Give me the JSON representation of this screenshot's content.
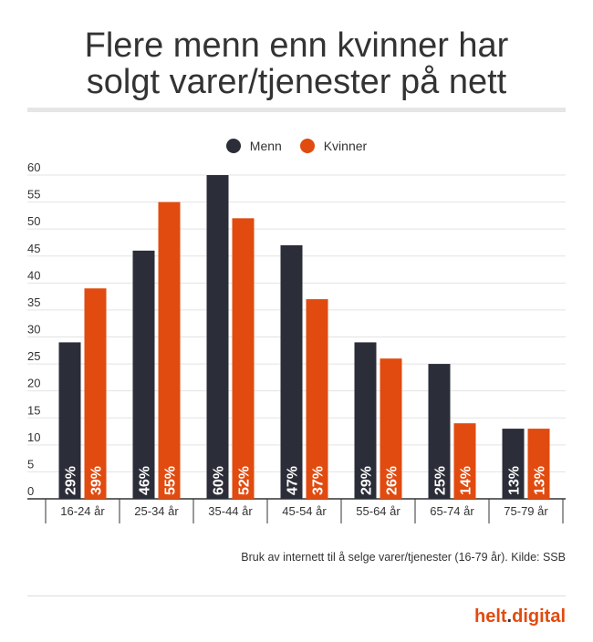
{
  "title_line1": "Flere menn enn kvinner har",
  "title_line2": "solgt varer/tjenester på nett",
  "colors": {
    "menn": "#2b2e38",
    "kvinner": "#e14b0f",
    "grid": "#e3e3e3",
    "axis": "#333333"
  },
  "chart_data": {
    "type": "bar",
    "title": "",
    "categories": [
      "16-24 år",
      "25-34 år",
      "35-44 år",
      "45-54 år",
      "55-64 år",
      "65-74 år",
      "75-79 år"
    ],
    "series": [
      {
        "name": "Menn",
        "values": [
          29,
          46,
          60,
          47,
          29,
          25,
          13
        ],
        "labels": [
          "29%",
          "46%",
          "60%",
          "47%",
          "29%",
          "25%",
          "13%"
        ]
      },
      {
        "name": "Kvinner",
        "values": [
          39,
          55,
          52,
          37,
          26,
          14,
          13
        ],
        "labels": [
          "39%",
          "55%",
          "52%",
          "37%",
          "26%",
          "14%",
          "13%"
        ]
      }
    ],
    "ylim": [
      0,
      60
    ],
    "yticks": [
      "0",
      "5",
      "10",
      "15",
      "20",
      "25",
      "30",
      "35",
      "40",
      "45",
      "50",
      "55",
      "60"
    ],
    "grid": true,
    "legend": "top-center"
  },
  "footnote": "Bruk av internett til å selge varer/tjenester (16-79 år). Kilde: SSB",
  "brand": {
    "name": "helt",
    "dot": ".",
    "suffix": "digital"
  }
}
